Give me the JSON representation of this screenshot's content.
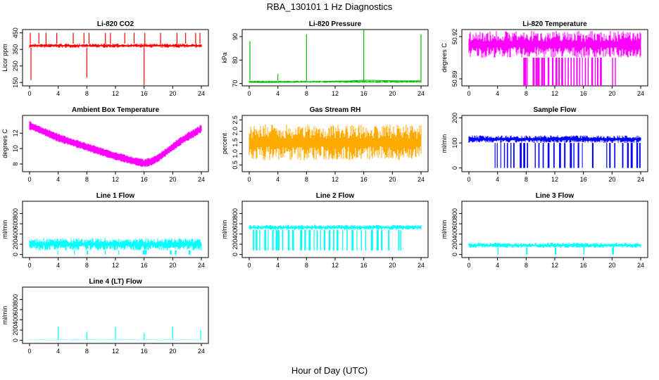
{
  "figure": {
    "title": "RBA_130101  1 Hz Diagnostics",
    "xlabel": "Hour of Day (UTC)"
  },
  "chart_data": [
    {
      "type": "line",
      "title": "Li-820 CO2",
      "ylabel": "Licor ppm",
      "color": "#ff0000",
      "xlim": [
        0,
        24
      ],
      "xticks": [
        0,
        4,
        8,
        12,
        16,
        20,
        24
      ],
      "xtick_labels": [
        "0",
        "4",
        "8",
        "12",
        "16",
        "20",
        "24"
      ],
      "ylim": [
        130,
        470
      ],
      "yticks": [
        150,
        250,
        350,
        450
      ],
      "ytick_labels": [
        "150",
        "250",
        "350",
        "450"
      ],
      "series": [
        {
          "x": [
            0,
            1,
            2,
            3,
            4,
            5,
            6,
            7,
            8,
            9,
            10,
            11,
            12,
            13,
            14,
            15,
            16,
            17,
            18,
            19,
            20,
            21,
            22,
            23,
            24
          ],
          "y": [
            375,
            372,
            374,
            371,
            376,
            373,
            375,
            372,
            374,
            371,
            373,
            375,
            372,
            374,
            371,
            373,
            375,
            372,
            374,
            371,
            373,
            375,
            372,
            374,
            370
          ]
        }
      ],
      "spikes_up_x": [
        0.1,
        1.3,
        2.3,
        3.8,
        6.1,
        7.6,
        8.3,
        10.6,
        11.3,
        13.3,
        14.6,
        16.1,
        18.3,
        20.6,
        21.8,
        23.2,
        23.8
      ],
      "spikes_up_y": 450,
      "spikes_down_x": [
        0.2,
        8.0,
        16.0
      ],
      "spikes_down_y": [
        165,
        180,
        135
      ],
      "band": [
        360,
        385
      ]
    },
    {
      "type": "line",
      "title": "Li-820 Pressure",
      "ylabel": "kPa",
      "color": "#00bb00",
      "xlim": [
        0,
        24
      ],
      "xticks": [
        0,
        4,
        8,
        12,
        16,
        20,
        24
      ],
      "xtick_labels": [
        "0",
        "4",
        "8",
        "12",
        "16",
        "20",
        "24"
      ],
      "ylim": [
        69,
        93
      ],
      "yticks": [
        70,
        80,
        90
      ],
      "ytick_labels": [
        "70",
        "80",
        "90"
      ],
      "series": [
        {
          "x": [
            0,
            2,
            4,
            6,
            8,
            10,
            12,
            14,
            16,
            18,
            20,
            22,
            24
          ],
          "y": [
            70.5,
            70.4,
            70.5,
            70.6,
            70.7,
            70.8,
            71.0,
            71.1,
            71.4,
            71.3,
            71.2,
            71.1,
            71.2
          ]
        }
      ],
      "spikes_up_x": [
        0.1,
        4.0,
        8.0,
        16.0,
        24.0
      ],
      "spikes_up_y_list": [
        88,
        74,
        91,
        93,
        91
      ],
      "band": [
        70.3,
        71.2
      ]
    },
    {
      "type": "line",
      "title": "Li-820 Temperature",
      "ylabel": "degrees C",
      "color": "#ff00ff",
      "xlim": [
        0,
        24
      ],
      "xticks": [
        0,
        4,
        8,
        12,
        16,
        20,
        24
      ],
      "xtick_labels": [
        "0",
        "4",
        "8",
        "12",
        "16",
        "20",
        "24"
      ],
      "ylim": [
        50.885,
        50.925
      ],
      "yticks": [
        50.89,
        50.92
      ],
      "ytick_labels": [
        "50.89",
        "50.92"
      ],
      "band": [
        50.905,
        50.924
      ],
      "drops_x": [
        7.6,
        7.8,
        8.1,
        8.9,
        9.3,
        9.6,
        10.1,
        10.4,
        11.0,
        11.6,
        12.1,
        12.5,
        12.9,
        13.4,
        13.8,
        14.2,
        14.6,
        15.0,
        15.4,
        15.8,
        16.2,
        16.6,
        17.1,
        17.6,
        17.9,
        18.3,
        20.0,
        20.4
      ],
      "drops_y": 50.885
    },
    {
      "type": "line",
      "title": "Ambient Box Temperature",
      "ylabel": "degrees C",
      "color": "#ff00ff",
      "xlim": [
        0,
        24
      ],
      "xticks": [
        0,
        4,
        8,
        12,
        16,
        20,
        24
      ],
      "xtick_labels": [
        "0",
        "4",
        "8",
        "12",
        "16",
        "20",
        "24"
      ],
      "ylim": [
        7,
        14.3
      ],
      "yticks": [
        8,
        10,
        12
      ],
      "ytick_labels": [
        "8",
        "10",
        "12"
      ],
      "series": [
        {
          "x": [
            0,
            1,
            2,
            3,
            4,
            5,
            6,
            7,
            8,
            9,
            10,
            11,
            12,
            13,
            14,
            15,
            16,
            17,
            18,
            19,
            20,
            21,
            22,
            23,
            24
          ],
          "y": [
            13.0,
            12.6,
            12.2,
            11.8,
            11.4,
            11.1,
            10.8,
            10.5,
            10.2,
            9.9,
            9.6,
            9.3,
            9.0,
            8.8,
            8.5,
            8.3,
            8.1,
            8.3,
            8.8,
            9.5,
            10.2,
            10.9,
            11.5,
            12.0,
            12.6
          ]
        }
      ],
      "band_half": 0.55
    },
    {
      "type": "line",
      "title": "Gas Stream RH",
      "ylabel": "percent",
      "color": "#ffaa00",
      "xlim": [
        0,
        24
      ],
      "xticks": [
        0,
        4,
        8,
        12,
        16,
        20,
        24
      ],
      "xtick_labels": [
        "0",
        "4",
        "8",
        "12",
        "16",
        "20",
        "24"
      ],
      "ylim": [
        0.2,
        2.7
      ],
      "yticks": [
        0.5,
        1.0,
        1.5,
        2.0,
        2.5
      ],
      "ytick_labels": [
        "0.5",
        "1.0",
        "1.5",
        "2.0",
        "2.5"
      ],
      "band": [
        0.7,
        2.3
      ]
    },
    {
      "type": "line",
      "title": "Sample Flow",
      "ylabel": "ml/min",
      "color": "#0000ff",
      "xlim": [
        0,
        24
      ],
      "xticks": [
        0,
        4,
        8,
        12,
        16,
        20,
        24
      ],
      "xtick_labels": [
        "0",
        "4",
        "8",
        "12",
        "16",
        "20",
        "24"
      ],
      "ylim": [
        -15,
        210
      ],
      "yticks": [
        0,
        100,
        200
      ],
      "ytick_labels": [
        "0",
        "100",
        "200"
      ],
      "band": [
        100,
        130
      ],
      "drops_x": [
        3.6,
        3.9,
        4.4,
        4.9,
        5.3,
        5.8,
        6.2,
        7.1,
        7.6,
        8.1,
        9.2,
        9.7,
        10.3,
        11.0,
        11.8,
        12.6,
        13.3,
        14.1,
        14.6,
        15.2,
        15.8,
        17.2,
        19.2,
        19.6,
        20.3,
        21.4,
        22.1,
        22.6,
        23.4,
        23.8
      ],
      "drops_y": 0
    },
    {
      "type": "line",
      "title": "Line 1 Flow",
      "ylabel": "ml/min",
      "color": "#00ffff",
      "xlim": [
        0,
        24
      ],
      "xticks": [
        0,
        4,
        8,
        12,
        16,
        20,
        24
      ],
      "xtick_labels": [
        "0",
        "4",
        "8",
        "12",
        "16",
        "20",
        "24"
      ],
      "ylim": [
        -60,
        1040
      ],
      "yticks": [
        0,
        200,
        400,
        600,
        800
      ],
      "ytick_labels": [
        "0",
        "200",
        "400",
        "600",
        "800"
      ],
      "band": [
        80,
        320
      ],
      "drops_x": [
        3.9,
        6.2,
        8.0,
        10.5,
        12.4,
        15.8,
        16.1,
        19.6,
        20.3,
        22.2
      ],
      "drops_y": 0
    },
    {
      "type": "line",
      "title": "Line 2 Flow",
      "ylabel": "ml/min",
      "color": "#00ffff",
      "xlim": [
        0,
        24
      ],
      "xticks": [
        0,
        4,
        8,
        12,
        16,
        20,
        24
      ],
      "xtick_labels": [
        "0",
        "4",
        "8",
        "12",
        "16",
        "20",
        "24"
      ],
      "ylim": [
        -60,
        1040
      ],
      "yticks": [
        0,
        200,
        400,
        600,
        800
      ],
      "ytick_labels": [
        "0",
        "200",
        "400",
        "600",
        "800"
      ],
      "band": [
        480,
        580
      ],
      "drops_x": [
        0.5,
        0.9,
        1.4,
        2.1,
        2.6,
        3.2,
        3.7,
        4.0,
        4.6,
        5.4,
        6.0,
        7.1,
        7.7,
        8.3,
        9.0,
        9.4,
        9.9,
        10.4,
        11.1,
        11.7,
        12.2,
        13.0,
        13.6,
        14.3,
        15.0,
        15.6,
        16.2,
        17.0,
        17.8,
        18.4,
        19.4,
        20.8,
        21.1
      ],
      "drops_y": 80
    },
    {
      "type": "line",
      "title": "Line 3 Flow",
      "ylabel": "ml/min",
      "color": "#00ffff",
      "xlim": [
        0,
        24
      ],
      "xticks": [
        0,
        4,
        8,
        12,
        16,
        20,
        24
      ],
      "xtick_labels": [
        "0",
        "4",
        "8",
        "12",
        "16",
        "20",
        "24"
      ],
      "ylim": [
        -60,
        1040
      ],
      "yticks": [
        0,
        200,
        400,
        600,
        800
      ],
      "ytick_labels": [
        "0",
        "200",
        "400",
        "600",
        "800"
      ],
      "band": [
        130,
        230
      ],
      "drops_x": [
        4.0,
        8.0,
        12.0,
        16.0,
        20.0
      ],
      "drops_y": 0
    },
    {
      "type": "line",
      "title": "Line 4 (LT) Flow",
      "ylabel": "ml/min",
      "color": "#00ffff",
      "xlim": [
        0,
        24
      ],
      "xticks": [
        0,
        4,
        8,
        12,
        16,
        20,
        24
      ],
      "xtick_labels": [
        "0",
        "4",
        "8",
        "12",
        "16",
        "20",
        "24"
      ],
      "ylim": [
        -60,
        1040
      ],
      "yticks": [
        0,
        200,
        400,
        600,
        800
      ],
      "ytick_labels": [
        "0",
        "200",
        "400",
        "600",
        "800"
      ],
      "band": [
        5,
        15
      ],
      "spikes_up_x": [
        4.0,
        8.0,
        12.0,
        16.0,
        20.0,
        23.9
      ],
      "spikes_up_y_list": [
        270,
        170,
        260,
        140,
        260,
        200
      ]
    }
  ]
}
